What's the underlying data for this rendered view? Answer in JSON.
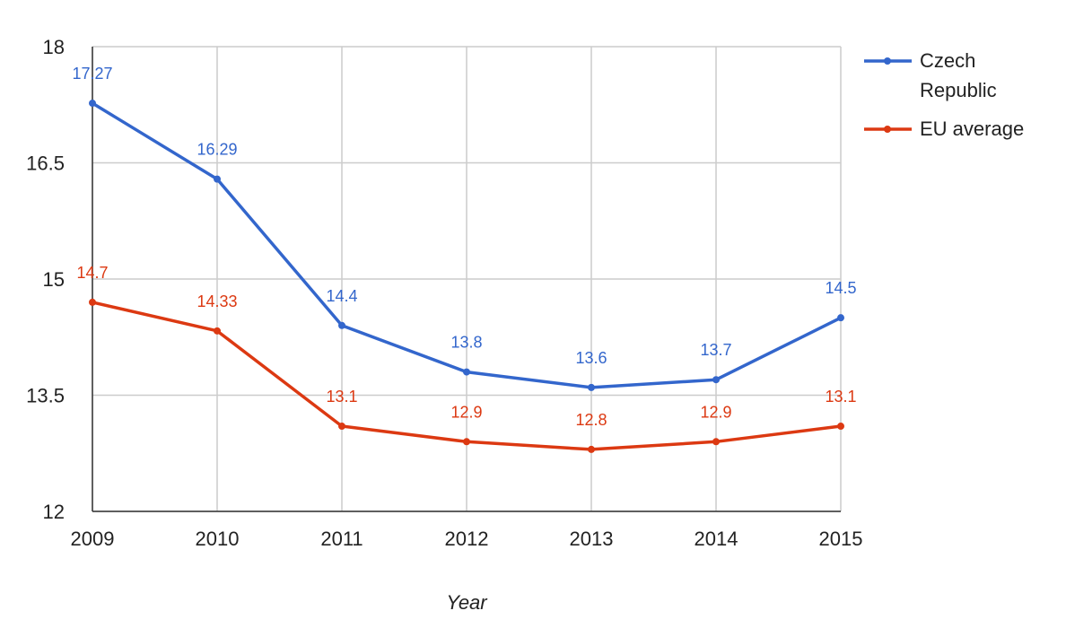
{
  "chart_data": {
    "type": "line",
    "title": "",
    "xlabel": "Year",
    "ylabel": "",
    "x": [
      "2009",
      "2010",
      "2011",
      "2012",
      "2013",
      "2014",
      "2015"
    ],
    "ylim": [
      12,
      18
    ],
    "yticks": [
      "12",
      "13.5",
      "15",
      "16.5",
      "18"
    ],
    "grid": true,
    "legend_position": "top-right",
    "series": [
      {
        "name_lines": [
          "Czech",
          "Republic"
        ],
        "color": "#3366cc",
        "values": [
          17.27,
          16.29,
          14.4,
          13.8,
          13.6,
          13.7,
          14.5
        ],
        "labels": [
          "17.27",
          "16.29",
          "14.4",
          "13.8",
          "13.6",
          "13.7",
          "14.5"
        ]
      },
      {
        "name_lines": [
          "EU average"
        ],
        "color": "#dc3912",
        "values": [
          14.7,
          14.33,
          13.1,
          12.9,
          12.8,
          12.9,
          13.1
        ],
        "labels": [
          "14.7",
          "14.33",
          "13.1",
          "12.9",
          "12.8",
          "12.9",
          "13.1"
        ]
      }
    ]
  }
}
